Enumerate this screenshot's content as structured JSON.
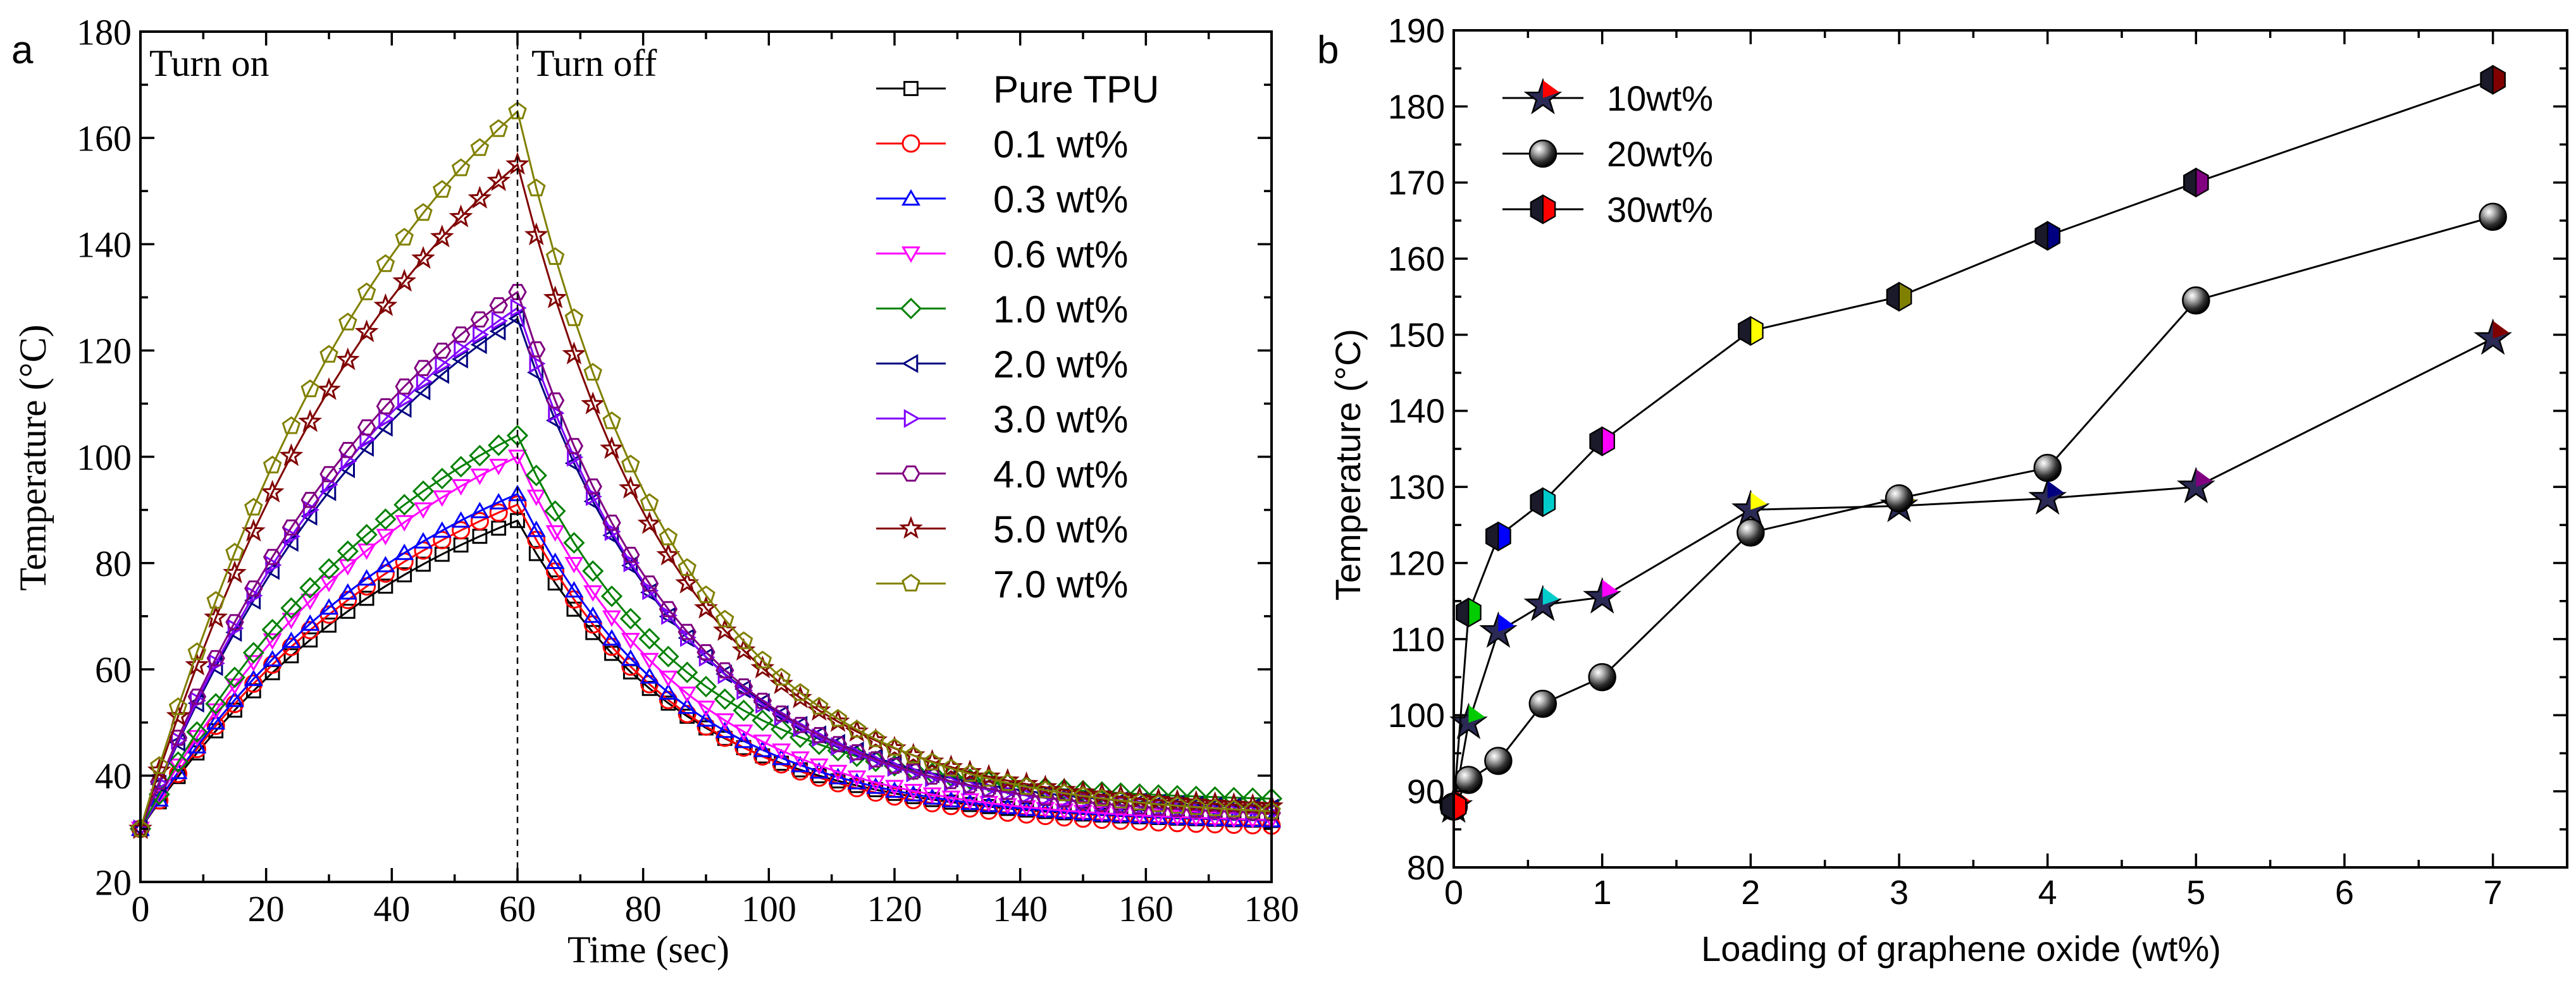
{
  "chart_data": [
    {
      "id": "a",
      "type": "line",
      "panel_label": "a",
      "xlabel": "Time (sec)",
      "ylabel": "Temperature (°C)",
      "xlim": [
        0,
        180
      ],
      "ylim": [
        20,
        180
      ],
      "xticks": [
        0,
        20,
        40,
        60,
        80,
        100,
        120,
        140,
        160,
        180
      ],
      "yticks": [
        20,
        40,
        60,
        80,
        100,
        120,
        140,
        160,
        180
      ],
      "annotations": {
        "turn_on": "Turn on",
        "turn_off": "Turn off"
      },
      "vline_x": 60,
      "series": [
        {
          "name": "Pure TPU",
          "color": "#000000",
          "marker": "square",
          "peak": 88,
          "final": 31
        },
        {
          "name": "0.1 wt%",
          "color": "#ff0000",
          "marker": "circle",
          "peak": 91,
          "final": 30
        },
        {
          "name": "0.3 wt%",
          "color": "#0000ff",
          "marker": "triangle-up",
          "peak": 93,
          "final": 31
        },
        {
          "name": "0.6 wt%",
          "color": "#ff00ff",
          "marker": "triangle-down",
          "peak": 100,
          "final": 31
        },
        {
          "name": "1.0 wt%",
          "color": "#008000",
          "marker": "diamond",
          "peak": 104,
          "final": 35
        },
        {
          "name": "2.0 wt%",
          "color": "#000080",
          "marker": "triangle-left",
          "peak": 126,
          "final": 33
        },
        {
          "name": "3.0 wt%",
          "color": "#8000ff",
          "marker": "triangle-right",
          "peak": 128,
          "final": 32
        },
        {
          "name": "4.0 wt%",
          "color": "#800080",
          "marker": "hexagon",
          "peak": 131,
          "final": 32
        },
        {
          "name": "5.0 wt%",
          "color": "#800000",
          "marker": "star",
          "peak": 155,
          "final": 33
        },
        {
          "name": "7.0 wt%",
          "color": "#808000",
          "marker": "pentagon",
          "peak": 165,
          "final": 32
        }
      ]
    },
    {
      "id": "b",
      "type": "line",
      "panel_label": "b",
      "xlabel": "Loading of graphene oxide (wt%)",
      "ylabel": "Temperature (°C)",
      "xlim": [
        0,
        7.5
      ],
      "ylim": [
        80,
        190
      ],
      "xticks": [
        0,
        1,
        2,
        3,
        4,
        5,
        6,
        7
      ],
      "yticks": [
        80,
        90,
        100,
        110,
        120,
        130,
        140,
        150,
        160,
        170,
        180,
        190
      ],
      "x": [
        0,
        0.1,
        0.3,
        0.6,
        1,
        2,
        3,
        4,
        5,
        7
      ],
      "point_colors": [
        "#ff0000",
        "#00cc00",
        "#0000ff",
        "#00cccc",
        "#ff00ff",
        "#ffff00",
        "#808000",
        "#000080",
        "#800080",
        "#800000"
      ],
      "series": [
        {
          "name": "10wt%",
          "marker": "star",
          "values": [
            88,
            99,
            111,
            114.5,
            115.5,
            127,
            127.5,
            128.5,
            130,
            149.5
          ]
        },
        {
          "name": "20wt%",
          "marker": "sphere",
          "values": [
            88,
            91.5,
            94,
            101.5,
            105,
            124,
            128.5,
            132.5,
            154.5,
            165.5
          ]
        },
        {
          "name": "30wt%",
          "marker": "hexagon",
          "values": [
            88,
            113.5,
            123.5,
            128,
            136,
            150.5,
            155,
            163,
            170,
            183.5
          ]
        }
      ]
    }
  ]
}
